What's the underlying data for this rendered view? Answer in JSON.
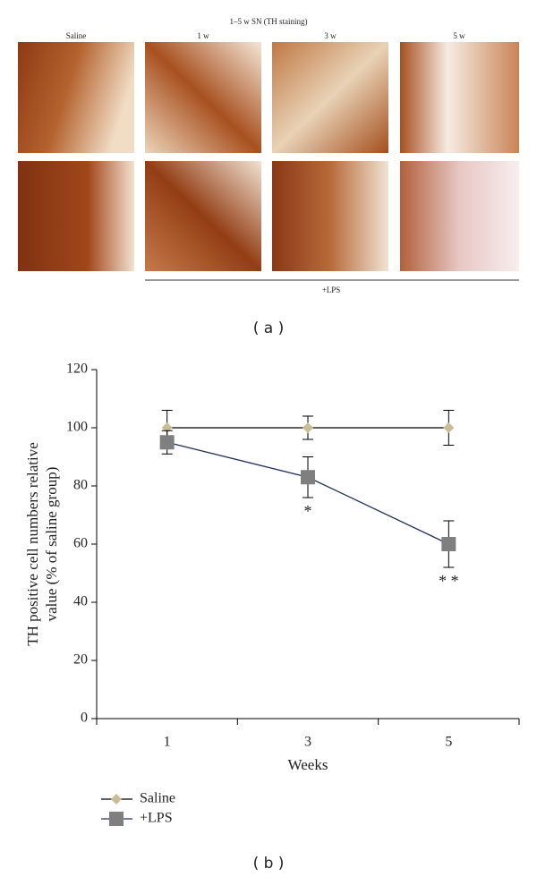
{
  "figure_a": {
    "title": "1–5 w SN (TH staining)",
    "columns": [
      "Saline",
      "1 w",
      "3 w",
      "5 w"
    ],
    "group_label": "+LPS",
    "caption": "( a )"
  },
  "chart_data": {
    "type": "line",
    "ylabel": [
      "TH positive cell numbers relative",
      "value (% of saline group)"
    ],
    "xlabel": "Weeks",
    "categories": [
      "1",
      "3",
      "5"
    ],
    "ylim": [
      0,
      120
    ],
    "yticks": [
      0,
      20,
      40,
      60,
      80,
      100,
      120
    ],
    "series": [
      {
        "name": "Saline",
        "color": "#c9bd95",
        "line_color": "#000000",
        "marker": "diamond",
        "values": [
          100,
          100,
          100
        ],
        "errors": [
          6,
          4,
          6
        ]
      },
      {
        "name": "+LPS",
        "color": "#7f7f7f",
        "line_color": "#1f2d5c",
        "marker": "square",
        "values": [
          95,
          83,
          60
        ],
        "errors": [
          4,
          7,
          8
        ]
      }
    ],
    "annotations": [
      {
        "text": "*",
        "category": 1
      },
      {
        "text": "* *",
        "category": 2
      }
    ],
    "caption": "( b )"
  }
}
